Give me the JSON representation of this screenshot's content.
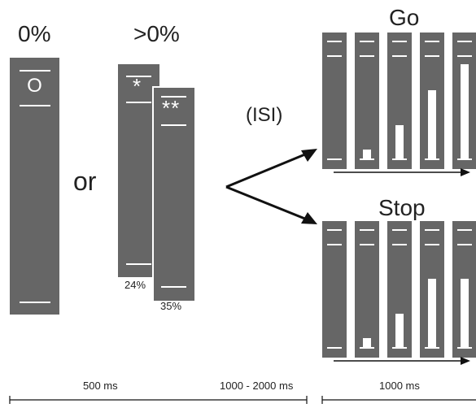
{
  "conditions": {
    "zero_label": "0%",
    "nonzero_label": ">0%",
    "or_label": "or",
    "zero_symbol": "O",
    "star_one_symbol": "*",
    "star_two_symbol": "**",
    "star_one_pct": "24%",
    "star_two_pct": "35%"
  },
  "isi_label": "(ISI)",
  "go": {
    "title": "Go",
    "stage_fill_levels": [
      0,
      0.09,
      0.33,
      0.67,
      0.93
    ]
  },
  "stop": {
    "title": "Stop",
    "stage_fill_levels": [
      0,
      0.09,
      0.33,
      0.67,
      0.67
    ]
  },
  "timeline": {
    "first_duration": "500 ms",
    "isi_duration": "1000 - 2000 ms",
    "response_duration": "1000 ms"
  },
  "colors": {
    "bar": "#666666",
    "marks": "#ffffff",
    "text": "#222222"
  }
}
